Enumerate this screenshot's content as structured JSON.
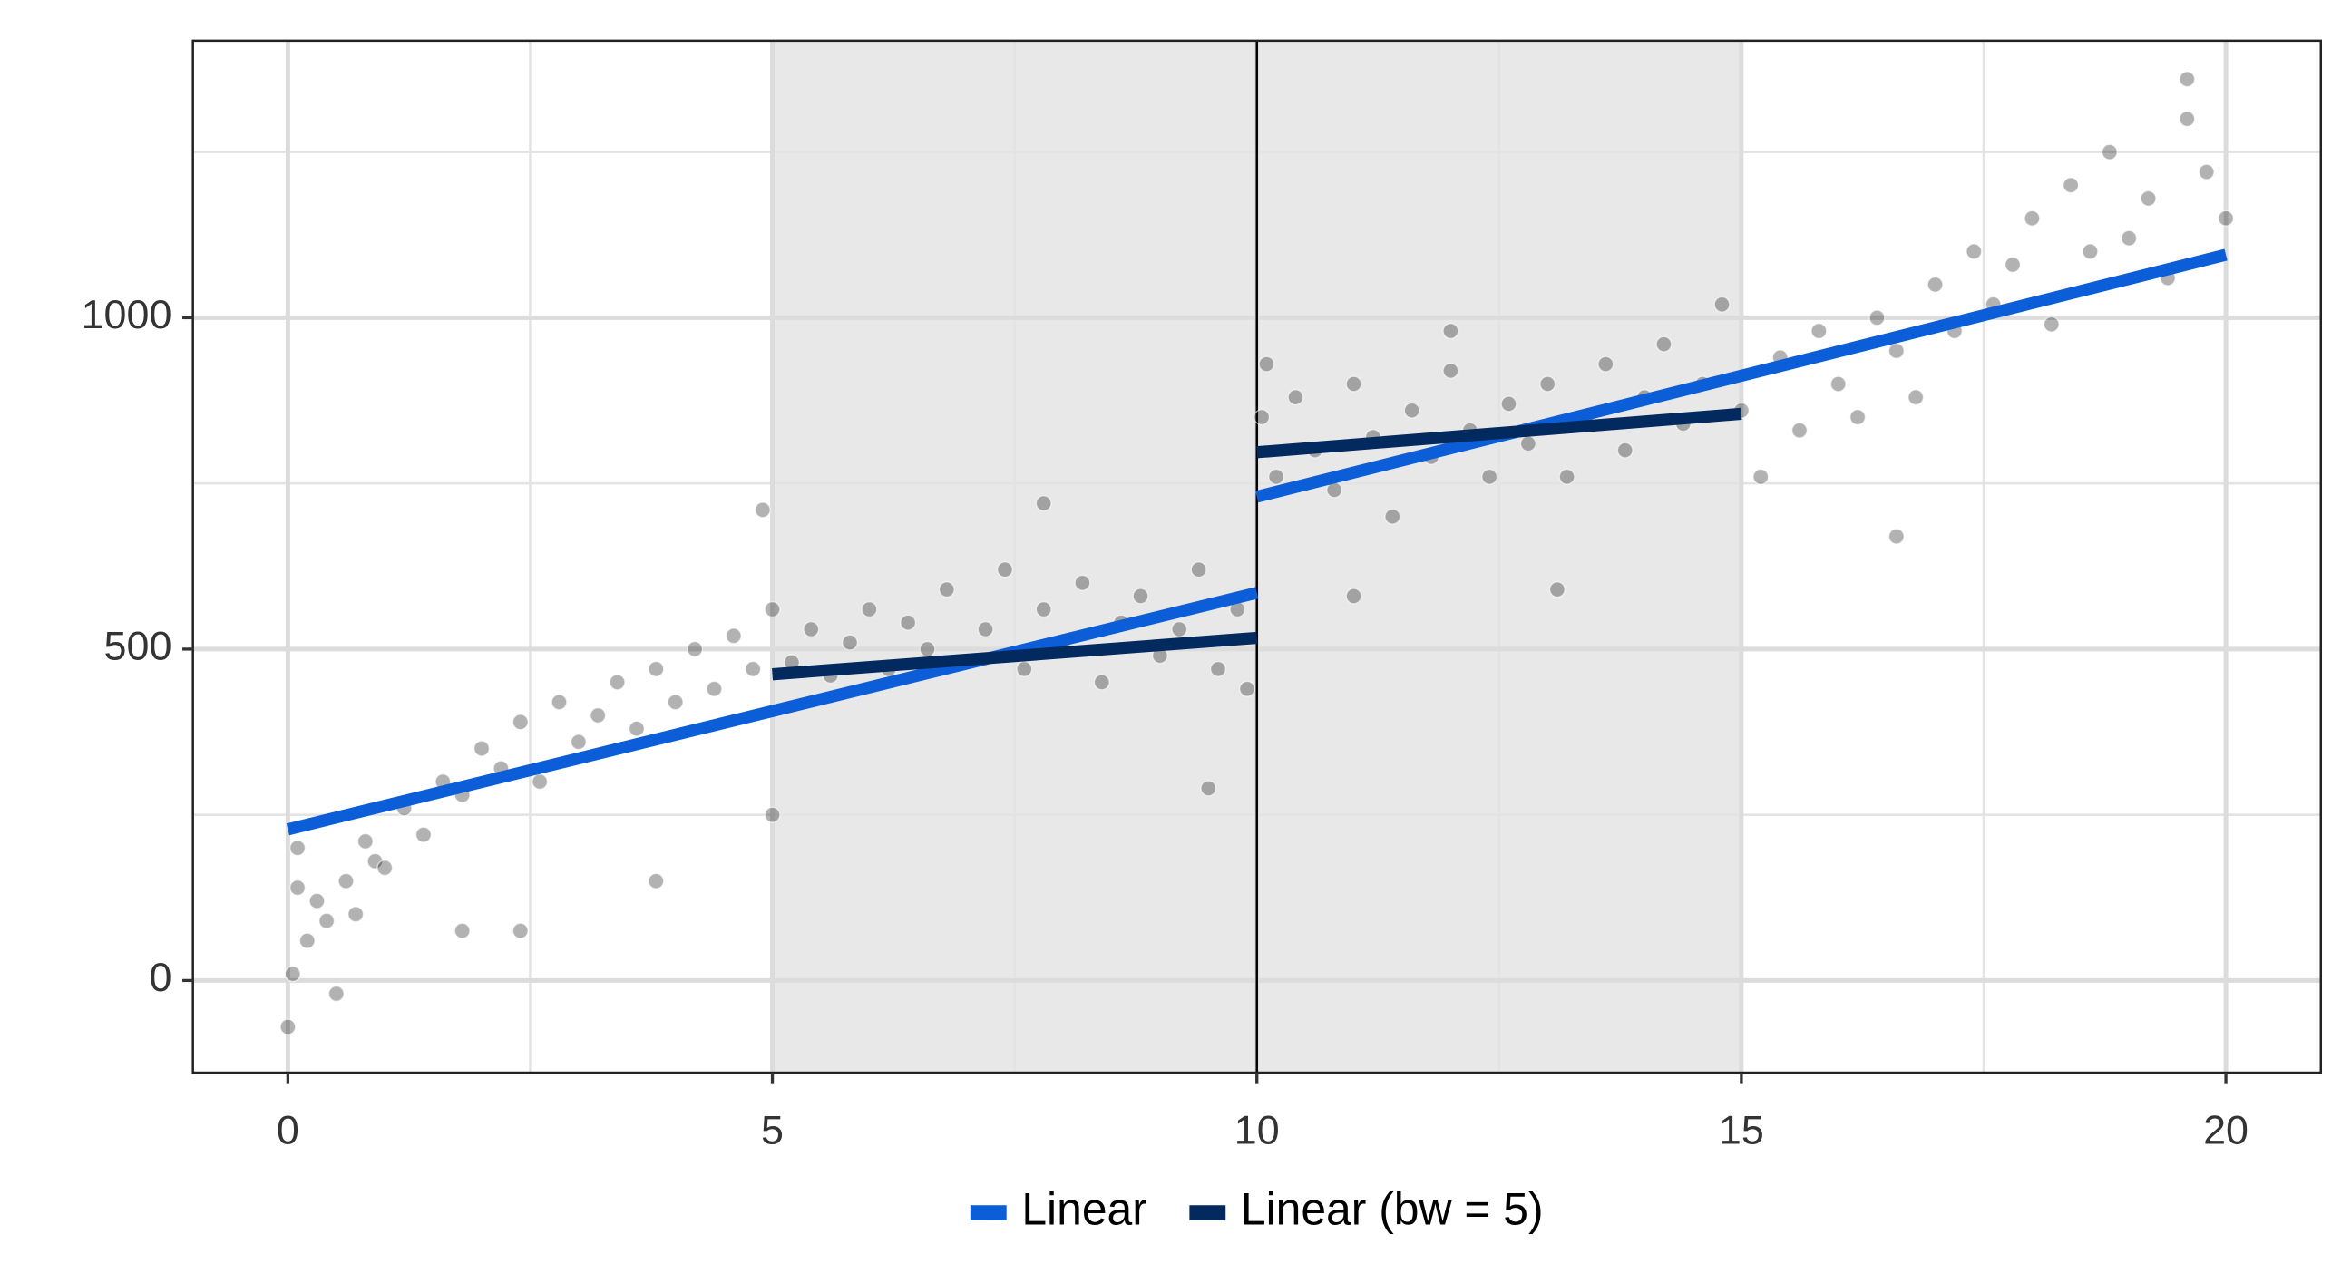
{
  "chart_data": {
    "type": "scatter",
    "xlim": [
      -0.98,
      20.98
    ],
    "ylim": [
      -139,
      1418
    ],
    "xticks": [
      0,
      5,
      10,
      15,
      20
    ],
    "yticks": [
      0,
      500,
      1000
    ],
    "minor_xticks": [
      2.5,
      7.5,
      12.5,
      17.5
    ],
    "minor_yticks": [
      250,
      750,
      1250
    ],
    "grid": true,
    "cutoff": 10,
    "bands": [
      [
        5,
        10
      ],
      [
        10,
        15
      ]
    ],
    "band_color": "#e8e8e8",
    "point_color": "#000000",
    "legend_position": "bottom",
    "x": [
      0.05,
      0.1,
      0.2,
      0.3,
      0.4,
      0.5,
      0.6,
      0.7,
      0.8,
      0.9,
      1.0,
      1.2,
      1.4,
      1.6,
      1.8,
      2.0,
      2.2,
      2.4,
      2.6,
      2.8,
      3.0,
      3.2,
      3.4,
      3.6,
      3.8,
      4.0,
      4.2,
      4.4,
      4.6,
      4.8,
      5.0,
      5.2,
      5.4,
      5.6,
      5.8,
      6.0,
      6.2,
      6.4,
      6.6,
      6.8,
      7.0,
      7.2,
      7.4,
      7.6,
      7.8,
      8.0,
      8.2,
      8.4,
      8.6,
      8.8,
      9.0,
      9.2,
      9.4,
      9.6,
      9.8,
      9.9,
      0.1,
      1.8,
      2.4,
      5.0,
      9.5,
      3.8,
      4.9,
      7.8,
      0.0,
      10.05,
      10.2,
      10.4,
      10.6,
      10.8,
      11.0,
      11.2,
      11.4,
      11.6,
      11.8,
      12.0,
      12.2,
      12.4,
      12.6,
      12.8,
      13.0,
      13.2,
      13.4,
      13.6,
      13.8,
      14.0,
      14.2,
      14.4,
      14.6,
      14.8,
      15.0,
      15.2,
      15.4,
      15.6,
      15.8,
      16.0,
      16.2,
      16.4,
      16.6,
      16.8,
      17.0,
      17.2,
      17.4,
      17.6,
      17.8,
      18.0,
      18.2,
      18.4,
      18.6,
      18.8,
      19.0,
      19.2,
      19.4,
      19.6,
      19.8,
      20.0,
      11.0,
      13.1,
      16.6,
      19.6,
      10.1,
      12.0
    ],
    "values": [
      10,
      140,
      60,
      120,
      90,
      -20,
      150,
      100,
      210,
      180,
      170,
      260,
      220,
      300,
      280,
      350,
      320,
      390,
      300,
      420,
      360,
      400,
      450,
      380,
      470,
      420,
      500,
      440,
      520,
      470,
      560,
      480,
      530,
      460,
      510,
      560,
      470,
      540,
      500,
      590,
      480,
      530,
      620,
      470,
      560,
      510,
      600,
      450,
      540,
      580,
      490,
      530,
      620,
      470,
      560,
      440,
      200,
      75,
      75,
      250,
      290,
      150,
      710,
      720,
      -70,
      850,
      760,
      880,
      800,
      740,
      900,
      820,
      700,
      860,
      790,
      920,
      830,
      760,
      870,
      810,
      900,
      760,
      850,
      930,
      800,
      880,
      960,
      840,
      900,
      1020,
      860,
      760,
      940,
      830,
      980,
      900,
      850,
      1000,
      950,
      880,
      1050,
      980,
      1100,
      1020,
      1080,
      1150,
      990,
      1200,
      1100,
      1250,
      1120,
      1180,
      1060,
      1300,
      1220,
      1150,
      580,
      590,
      670,
      1360,
      930,
      980
    ],
    "series": [
      {
        "name": "Linear",
        "color": "#0b5ed7",
        "x": [
          0,
          10,
          null,
          10,
          20
        ],
        "values": [
          228,
          585,
          null,
          730,
          1095
        ]
      },
      {
        "name": "Linear (bw = 5)",
        "color": "#022a5e",
        "x": [
          5,
          10,
          null,
          10,
          15
        ],
        "values": [
          462,
          517,
          null,
          797,
          855
        ]
      }
    ]
  }
}
